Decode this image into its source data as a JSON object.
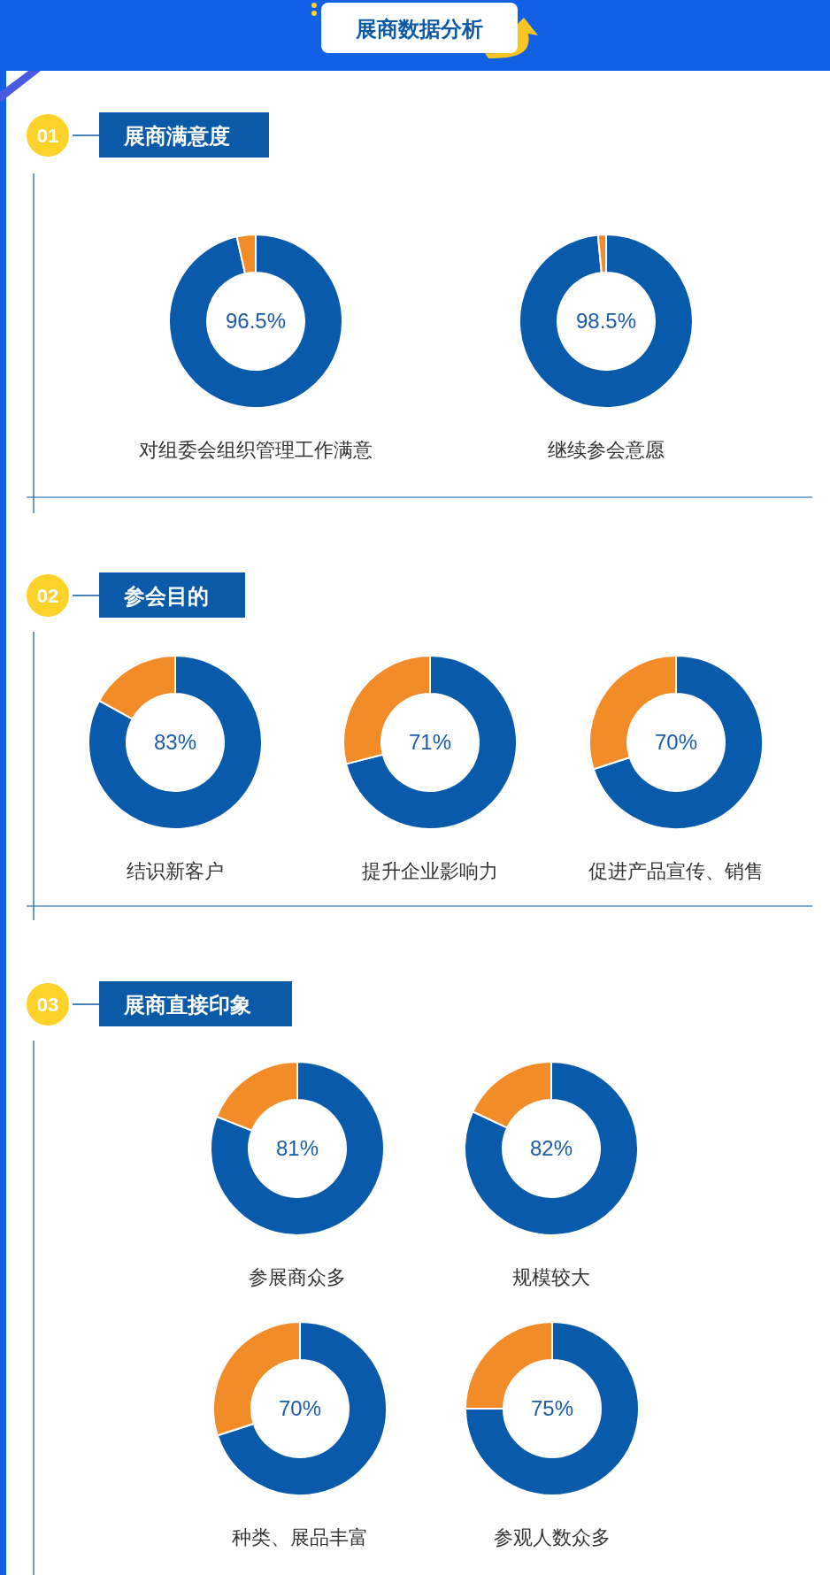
{
  "chart_data": [
    {
      "type": "other",
      "title": "展商数据分析"
    },
    {
      "type": "other",
      "title": "展商满意度",
      "annotations": [
        "01"
      ]
    },
    {
      "type": "donut",
      "title": "对组委会组织管理工作满意",
      "categories": [
        null,
        null
      ],
      "values": [
        96.5,
        3.5
      ],
      "colors": [
        "#0a5aab",
        "#f28c28"
      ],
      "value_labels": [
        "96.5%",
        null
      ]
    },
    {
      "type": "donut",
      "title": "继续参会意愿",
      "categories": [
        null,
        null
      ],
      "values": [
        98.5,
        1.5
      ],
      "colors": [
        "#0a5aab",
        "#f28c28"
      ],
      "value_labels": [
        "98.5%",
        null
      ]
    },
    {
      "type": "other",
      "title": "参会目的",
      "annotations": [
        "02"
      ]
    },
    {
      "type": "donut",
      "title": "结识新客户",
      "categories": [
        null,
        null
      ],
      "values": [
        83,
        17
      ],
      "colors": [
        "#0a5aab",
        "#f28c28"
      ],
      "value_labels": [
        "83%",
        null
      ]
    },
    {
      "type": "donut",
      "title": "提升企业影响力",
      "categories": [
        null,
        null
      ],
      "values": [
        71,
        29
      ],
      "colors": [
        "#0a5aab",
        "#f28c28"
      ],
      "value_labels": [
        "71%",
        null
      ]
    },
    {
      "type": "donut",
      "title": "促进产品宣传、销售",
      "categories": [
        null,
        null
      ],
      "values": [
        70,
        30
      ],
      "colors": [
        "#0a5aab",
        "#f28c28"
      ],
      "value_labels": [
        "70%",
        null
      ]
    },
    {
      "type": "other",
      "title": "展商直接印象",
      "annotations": [
        "03"
      ]
    },
    {
      "type": "donut",
      "title": "参展商众多",
      "categories": [
        null,
        null
      ],
      "values": [
        81,
        19
      ],
      "colors": [
        "#0a5aab",
        "#f28c28"
      ],
      "value_labels": [
        "81%",
        null
      ]
    },
    {
      "type": "donut",
      "title": "规模较大",
      "categories": [
        null,
        null
      ],
      "values": [
        82,
        18
      ],
      "colors": [
        "#0a5aab",
        "#f28c28"
      ],
      "value_labels": [
        "82%",
        null
      ]
    },
    {
      "type": "donut",
      "title": "种类、展品丰富",
      "categories": [
        null,
        null
      ],
      "values": [
        70,
        30
      ],
      "colors": [
        "#0a5aab",
        "#f28c28"
      ],
      "value_labels": [
        "70%",
        null
      ]
    },
    {
      "type": "donut",
      "title": "参观人数众多",
      "categories": [
        null,
        null
      ],
      "values": [
        75,
        25
      ],
      "colors": [
        "#0a5aab",
        "#f28c28"
      ],
      "value_labels": [
        "75%",
        null
      ]
    }
  ]
}
